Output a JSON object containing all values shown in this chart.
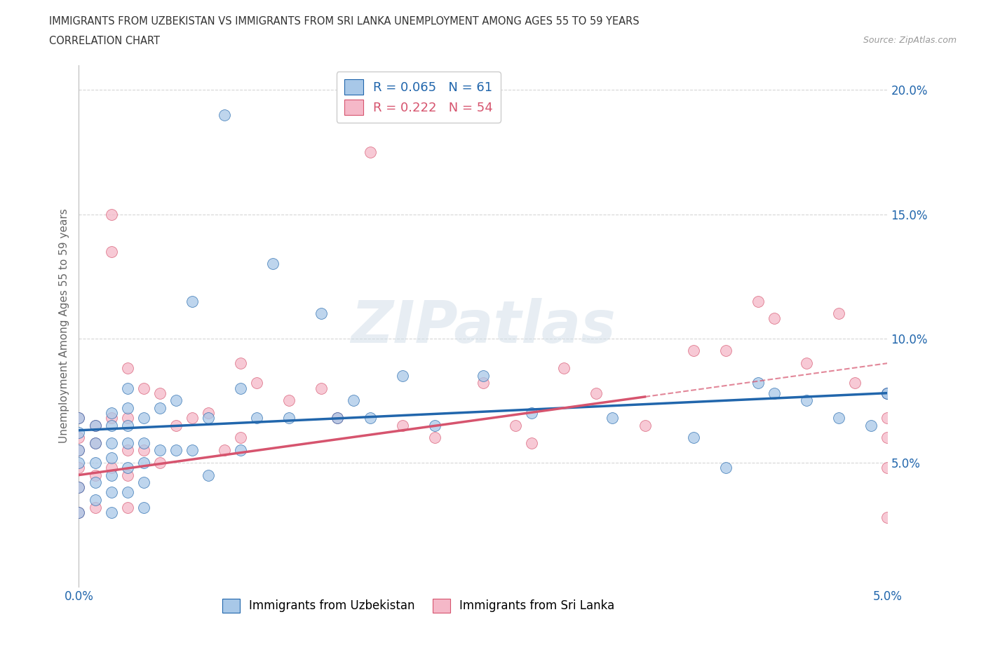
{
  "title_line1": "IMMIGRANTS FROM UZBEKISTAN VS IMMIGRANTS FROM SRI LANKA UNEMPLOYMENT AMONG AGES 55 TO 59 YEARS",
  "title_line2": "CORRELATION CHART",
  "source_text": "Source: ZipAtlas.com",
  "ylabel": "Unemployment Among Ages 55 to 59 years",
  "xlim": [
    0.0,
    0.05
  ],
  "ylim": [
    0.0,
    0.21
  ],
  "yticks": [
    0.05,
    0.1,
    0.15,
    0.2
  ],
  "ytick_labels": [
    "5.0%",
    "10.0%",
    "15.0%",
    "20.0%"
  ],
  "xticks": [
    0.0,
    0.0125,
    0.025,
    0.0375,
    0.05
  ],
  "xtick_labels": [
    "0.0%",
    "",
    "",
    "",
    "5.0%"
  ],
  "color_uzbekistan": "#a8c8e8",
  "color_sri_lanka": "#f5b8c8",
  "line_color_uzbekistan": "#2166ac",
  "line_color_sri_lanka": "#d6546e",
  "R_uzbekistan": 0.065,
  "N_uzbekistan": 61,
  "R_sri_lanka": 0.222,
  "N_sri_lanka": 54,
  "background_color": "#ffffff",
  "grid_color": "#cccccc",
  "watermark": "ZIPatlas",
  "uzb_slope": 0.3,
  "uzb_intercept": 0.063,
  "sri_slope": 0.9,
  "sri_intercept": 0.045,
  "uzbekistan_x": [
    0.0,
    0.0,
    0.0,
    0.0,
    0.0,
    0.0,
    0.001,
    0.001,
    0.001,
    0.001,
    0.001,
    0.002,
    0.002,
    0.002,
    0.002,
    0.002,
    0.002,
    0.002,
    0.003,
    0.003,
    0.003,
    0.003,
    0.003,
    0.003,
    0.004,
    0.004,
    0.004,
    0.004,
    0.004,
    0.005,
    0.005,
    0.006,
    0.006,
    0.007,
    0.007,
    0.008,
    0.008,
    0.009,
    0.01,
    0.01,
    0.011,
    0.012,
    0.013,
    0.015,
    0.016,
    0.017,
    0.018,
    0.02,
    0.022,
    0.025,
    0.028,
    0.033,
    0.038,
    0.04,
    0.042,
    0.043,
    0.045,
    0.047,
    0.049,
    0.05,
    0.05
  ],
  "uzbekistan_y": [
    0.068,
    0.062,
    0.055,
    0.05,
    0.04,
    0.03,
    0.065,
    0.058,
    0.05,
    0.042,
    0.035,
    0.07,
    0.065,
    0.058,
    0.052,
    0.045,
    0.038,
    0.03,
    0.08,
    0.072,
    0.065,
    0.058,
    0.048,
    0.038,
    0.068,
    0.058,
    0.05,
    0.042,
    0.032,
    0.072,
    0.055,
    0.075,
    0.055,
    0.115,
    0.055,
    0.068,
    0.045,
    0.19,
    0.08,
    0.055,
    0.068,
    0.13,
    0.068,
    0.11,
    0.068,
    0.075,
    0.068,
    0.085,
    0.065,
    0.085,
    0.07,
    0.068,
    0.06,
    0.048,
    0.082,
    0.078,
    0.075,
    0.068,
    0.065,
    0.078,
    0.078
  ],
  "sri_lanka_x": [
    0.0,
    0.0,
    0.0,
    0.0,
    0.0,
    0.0,
    0.001,
    0.001,
    0.001,
    0.001,
    0.002,
    0.002,
    0.002,
    0.002,
    0.003,
    0.003,
    0.003,
    0.003,
    0.003,
    0.004,
    0.004,
    0.005,
    0.005,
    0.006,
    0.007,
    0.008,
    0.009,
    0.01,
    0.01,
    0.011,
    0.013,
    0.015,
    0.016,
    0.018,
    0.02,
    0.022,
    0.025,
    0.027,
    0.028,
    0.03,
    0.032,
    0.035,
    0.038,
    0.04,
    0.042,
    0.043,
    0.045,
    0.047,
    0.048,
    0.05,
    0.05,
    0.05,
    0.05,
    0.05
  ],
  "sri_lanka_y": [
    0.068,
    0.06,
    0.055,
    0.048,
    0.04,
    0.03,
    0.065,
    0.058,
    0.045,
    0.032,
    0.15,
    0.135,
    0.068,
    0.048,
    0.088,
    0.068,
    0.055,
    0.045,
    0.032,
    0.08,
    0.055,
    0.078,
    0.05,
    0.065,
    0.068,
    0.07,
    0.055,
    0.09,
    0.06,
    0.082,
    0.075,
    0.08,
    0.068,
    0.175,
    0.065,
    0.06,
    0.082,
    0.065,
    0.058,
    0.088,
    0.078,
    0.065,
    0.095,
    0.095,
    0.115,
    0.108,
    0.09,
    0.11,
    0.082,
    0.078,
    0.068,
    0.06,
    0.048,
    0.028
  ]
}
